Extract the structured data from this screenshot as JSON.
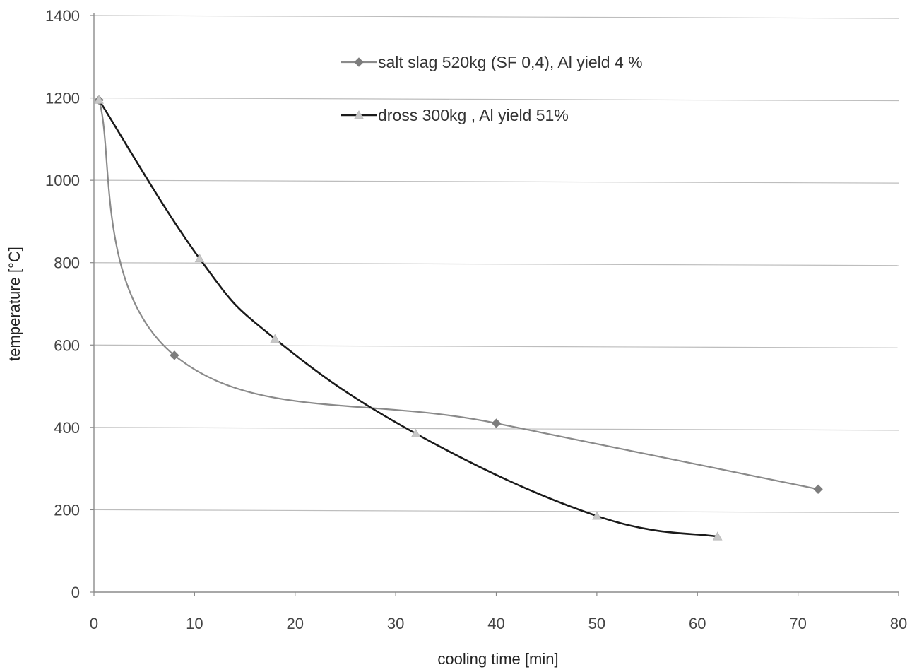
{
  "chart_data": {
    "type": "line",
    "xlabel": "cooling time [min]",
    "ylabel": "temperature [°C]",
    "xlim": [
      0,
      80
    ],
    "ylim": [
      0,
      1400
    ],
    "xticks": [
      0,
      10,
      20,
      30,
      40,
      50,
      60,
      70,
      80
    ],
    "yticks": [
      0,
      200,
      400,
      600,
      800,
      1000,
      1200,
      1400
    ],
    "grid": "horizontal",
    "legend_position": "top-center",
    "series": [
      {
        "name": "salt slag 520kg (SF 0,4), Al yield 4 %",
        "color": "#8a8a8a",
        "marker": "diamond",
        "x": [
          0.5,
          8,
          40,
          72
        ],
        "y": [
          1195,
          575,
          410,
          250
        ]
      },
      {
        "name": "dross 300kg , Al yield 51%",
        "color": "#1a1a1a",
        "marker": "triangle",
        "x": [
          0.5,
          10.5,
          18,
          32,
          50,
          62
        ],
        "y": [
          1195,
          810,
          615,
          385,
          185,
          135
        ]
      }
    ]
  }
}
